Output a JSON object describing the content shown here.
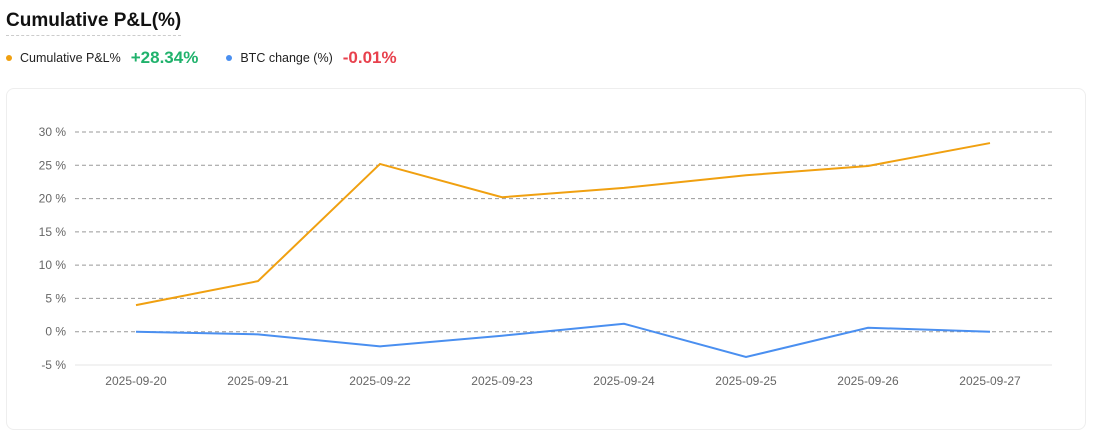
{
  "title": "Cumulative P&L(%)",
  "legend": [
    {
      "label": "Cumulative P&L%",
      "value": "+28.34%",
      "color": "#f0a010",
      "value_color": "#20b26c"
    },
    {
      "label": "BTC change (%)",
      "value": "-0.01%",
      "color": "#4a8ff0",
      "value_color": "#e8414d"
    }
  ],
  "chart_data": {
    "type": "line",
    "title": "Cumulative P&L(%)",
    "x": [
      "2025-09-20",
      "2025-09-21",
      "2025-09-22",
      "2025-09-23",
      "2025-09-24",
      "2025-09-25",
      "2025-09-26",
      "2025-09-27"
    ],
    "series": [
      {
        "name": "Cumulative P&L%",
        "color": "#f0a010",
        "values": [
          4.0,
          7.6,
          25.2,
          20.2,
          21.6,
          23.5,
          24.9,
          28.34
        ]
      },
      {
        "name": "BTC change (%)",
        "color": "#4a8ff0",
        "values": [
          0.0,
          -0.4,
          -2.2,
          -0.6,
          1.2,
          -3.8,
          0.6,
          -0.01
        ]
      }
    ],
    "ylim": [
      -5,
      30
    ],
    "yticks": [
      -5,
      0,
      5,
      10,
      15,
      20,
      25,
      30
    ],
    "ytick_labels": [
      "-5 %",
      "0 %",
      "5 %",
      "10 %",
      "15 %",
      "20 %",
      "25 %",
      "30 %"
    ],
    "grid": true,
    "legend_position": "top-left"
  }
}
